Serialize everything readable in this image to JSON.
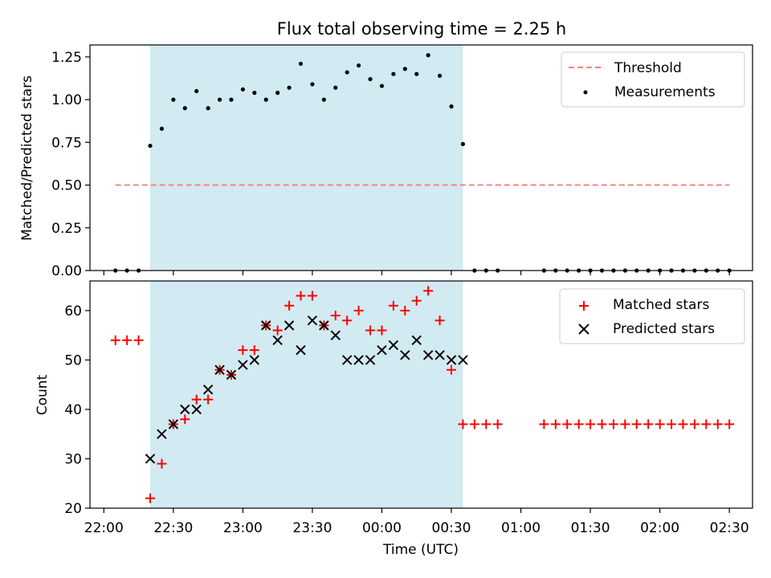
{
  "chart_data": [
    {
      "type": "scatter",
      "title": "Flux total observing time = 2.25 h",
      "xlabel": "",
      "ylabel": "Matched/Predicted stars",
      "xlim": [
        "21:54",
        "02:40"
      ],
      "ylim": [
        0,
        1.32
      ],
      "yticks": [
        "0.00",
        "0.25",
        "0.50",
        "0.75",
        "1.00",
        "1.25"
      ],
      "ytick_values": [
        0,
        0.25,
        0.5,
        0.75,
        1.0,
        1.25
      ],
      "shaded_region": {
        "start": "22:20",
        "end": "00:35",
        "color": "#add8e6"
      },
      "legend_position": "upper right",
      "threshold": {
        "name": "Threshold",
        "value": 0.5,
        "start": "22:05",
        "end": "02:30",
        "color": "#ff8080"
      },
      "series": [
        {
          "name": "Measurements",
          "marker": "dot",
          "color": "#000000",
          "x": [
            "22:05",
            "22:10",
            "22:15",
            "22:20",
            "22:25",
            "22:30",
            "22:35",
            "22:40",
            "22:45",
            "22:50",
            "22:55",
            "23:00",
            "23:05",
            "23:10",
            "23:15",
            "23:20",
            "23:25",
            "23:30",
            "23:35",
            "23:40",
            "23:45",
            "23:50",
            "23:55",
            "00:00",
            "00:05",
            "00:10",
            "00:15",
            "00:20",
            "00:25",
            "00:30",
            "00:35",
            "00:40",
            "00:45",
            "00:50",
            "01:10",
            "01:15",
            "01:20",
            "01:25",
            "01:30",
            "01:35",
            "01:40",
            "01:45",
            "01:50",
            "01:55",
            "02:00",
            "02:05",
            "02:10",
            "02:15",
            "02:20",
            "02:25",
            "02:30"
          ],
          "y": [
            0,
            0,
            0,
            0.73,
            0.83,
            1.0,
            0.95,
            1.05,
            0.95,
            1.0,
            1.0,
            1.06,
            1.04,
            1.0,
            1.04,
            1.07,
            1.21,
            1.09,
            1.0,
            1.07,
            1.16,
            1.2,
            1.12,
            1.08,
            1.15,
            1.18,
            1.15,
            1.26,
            1.14,
            0.96,
            0.74,
            0,
            0,
            0,
            0,
            0,
            0,
            0,
            0,
            0,
            0,
            0,
            0,
            0,
            0,
            0,
            0,
            0,
            0,
            0,
            0
          ]
        }
      ]
    },
    {
      "type": "scatter",
      "title": "",
      "xlabel": "Time (UTC)",
      "ylabel": "Count",
      "xlim": [
        "21:54",
        "02:40"
      ],
      "ylim": [
        20,
        66
      ],
      "xticks": [
        "22:00",
        "22:30",
        "23:00",
        "23:30",
        "00:00",
        "00:30",
        "01:00",
        "01:30",
        "02:00",
        "02:30"
      ],
      "yticks": [
        "20",
        "30",
        "40",
        "50",
        "60"
      ],
      "ytick_values": [
        20,
        30,
        40,
        50,
        60
      ],
      "shaded_region": {
        "start": "22:20",
        "end": "00:35",
        "color": "#add8e6"
      },
      "legend_position": "upper right",
      "series": [
        {
          "name": "Matched stars",
          "marker": "plus",
          "color": "#ff0000",
          "x": [
            "22:05",
            "22:10",
            "22:15",
            "22:20",
            "22:25",
            "22:30",
            "22:35",
            "22:40",
            "22:45",
            "22:50",
            "22:55",
            "23:00",
            "23:05",
            "23:10",
            "23:15",
            "23:20",
            "23:25",
            "23:30",
            "23:35",
            "23:40",
            "23:45",
            "23:50",
            "23:55",
            "00:00",
            "00:05",
            "00:10",
            "00:15",
            "00:20",
            "00:25",
            "00:30",
            "00:35",
            "00:40",
            "00:45",
            "00:50",
            "01:10",
            "01:15",
            "01:20",
            "01:25",
            "01:30",
            "01:35",
            "01:40",
            "01:45",
            "01:50",
            "01:55",
            "02:00",
            "02:05",
            "02:10",
            "02:15",
            "02:20",
            "02:25",
            "02:30"
          ],
          "y": [
            54,
            54,
            54,
            22,
            29,
            37,
            38,
            42,
            42,
            48,
            47,
            52,
            52,
            57,
            56,
            61,
            63,
            63,
            57,
            59,
            58,
            60,
            56,
            56,
            61,
            60,
            62,
            64,
            58,
            48,
            37,
            37,
            37,
            37,
            37,
            37,
            37,
            37,
            37,
            37,
            37,
            37,
            37,
            37,
            37,
            37,
            37,
            37,
            37,
            37,
            37
          ]
        },
        {
          "name": "Predicted stars",
          "marker": "x",
          "color": "#000000",
          "x": [
            "22:20",
            "22:25",
            "22:30",
            "22:35",
            "22:40",
            "22:45",
            "22:50",
            "22:55",
            "23:00",
            "23:05",
            "23:10",
            "23:15",
            "23:20",
            "23:25",
            "23:30",
            "23:35",
            "23:40",
            "23:45",
            "23:50",
            "23:55",
            "00:00",
            "00:05",
            "00:10",
            "00:15",
            "00:20",
            "00:25",
            "00:30",
            "00:35"
          ],
          "y": [
            30,
            35,
            37,
            40,
            40,
            44,
            48,
            47,
            49,
            50,
            57,
            54,
            57,
            52,
            58,
            57,
            55,
            50,
            50,
            50,
            52,
            53,
            51,
            54,
            51,
            51,
            50,
            50
          ]
        }
      ]
    }
  ]
}
